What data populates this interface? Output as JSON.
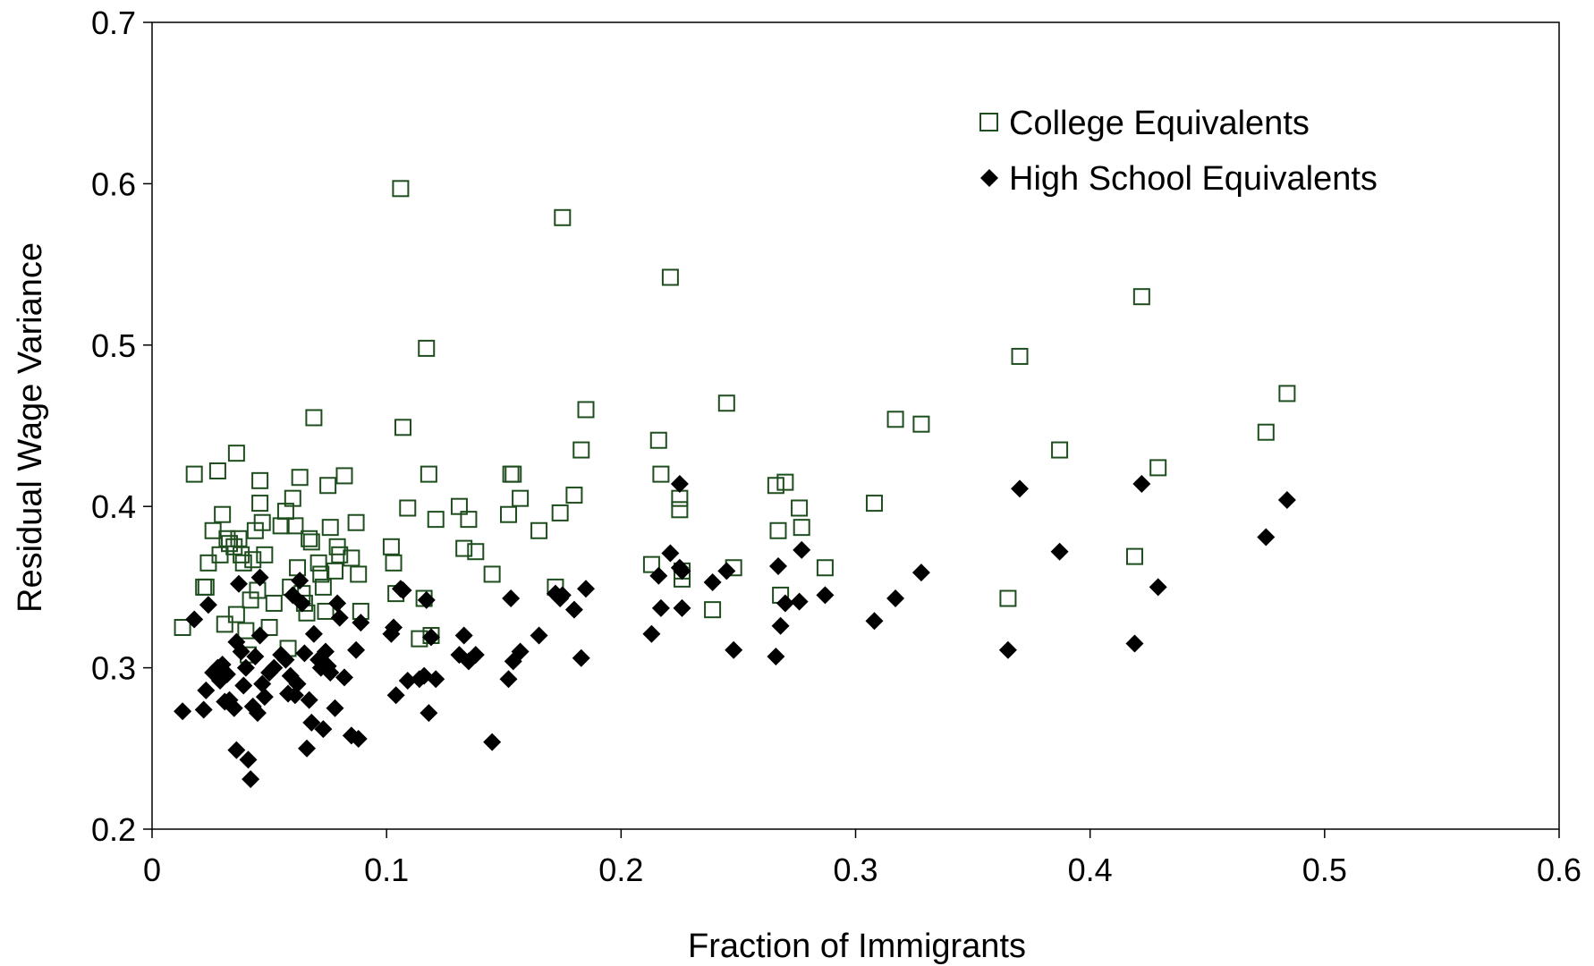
{
  "chart_data": {
    "type": "scatter",
    "title": "",
    "xlabel": "Fraction of Immigrants",
    "ylabel": "Residual Wage Variance",
    "xlim": [
      0,
      0.6
    ],
    "ylim": [
      0.2,
      0.7
    ],
    "x_ticks": [
      "0",
      "0.1",
      "0.2",
      "0.3",
      "0.4",
      "0.5",
      "0.6"
    ],
    "y_ticks": [
      "0.2",
      "0.3",
      "0.4",
      "0.5",
      "0.6",
      "0.7"
    ],
    "grid": false,
    "legend": "top-right",
    "series": [
      {
        "name": "College Equivalents",
        "marker": "hollow-square",
        "color": "#1e4d1e",
        "x": [
          0.013,
          0.018,
          0.022,
          0.023,
          0.024,
          0.026,
          0.028,
          0.029,
          0.03,
          0.031,
          0.032,
          0.033,
          0.035,
          0.036,
          0.036,
          0.037,
          0.038,
          0.039,
          0.04,
          0.041,
          0.042,
          0.043,
          0.044,
          0.045,
          0.046,
          0.046,
          0.047,
          0.048,
          0.05,
          0.052,
          0.055,
          0.057,
          0.058,
          0.059,
          0.06,
          0.061,
          0.062,
          0.063,
          0.064,
          0.065,
          0.066,
          0.067,
          0.068,
          0.069,
          0.071,
          0.072,
          0.073,
          0.074,
          0.075,
          0.076,
          0.078,
          0.079,
          0.08,
          0.082,
          0.085,
          0.087,
          0.088,
          0.089,
          0.102,
          0.103,
          0.104,
          0.106,
          0.107,
          0.109,
          0.114,
          0.116,
          0.117,
          0.118,
          0.119,
          0.121,
          0.131,
          0.133,
          0.135,
          0.138,
          0.145,
          0.152,
          0.153,
          0.154,
          0.157,
          0.165,
          0.172,
          0.174,
          0.175,
          0.18,
          0.183,
          0.185,
          0.213,
          0.216,
          0.217,
          0.221,
          0.225,
          0.225,
          0.226,
          0.226,
          0.239,
          0.245,
          0.248,
          0.266,
          0.267,
          0.268,
          0.27,
          0.276,
          0.277,
          0.287,
          0.308,
          0.317,
          0.328,
          0.365,
          0.37,
          0.387,
          0.419,
          0.422,
          0.429,
          0.475,
          0.484
        ],
        "y": [
          0.325,
          0.42,
          0.35,
          0.35,
          0.365,
          0.385,
          0.422,
          0.37,
          0.395,
          0.327,
          0.38,
          0.377,
          0.375,
          0.333,
          0.433,
          0.38,
          0.37,
          0.365,
          0.323,
          0.308,
          0.342,
          0.367,
          0.385,
          0.348,
          0.416,
          0.402,
          0.39,
          0.37,
          0.325,
          0.34,
          0.388,
          0.397,
          0.312,
          0.35,
          0.405,
          0.388,
          0.362,
          0.418,
          0.346,
          0.34,
          0.334,
          0.38,
          0.378,
          0.455,
          0.365,
          0.358,
          0.35,
          0.335,
          0.413,
          0.387,
          0.36,
          0.375,
          0.37,
          0.419,
          0.368,
          0.39,
          0.358,
          0.335,
          0.375,
          0.365,
          0.346,
          0.597,
          0.449,
          0.399,
          0.318,
          0.343,
          0.498,
          0.42,
          0.32,
          0.392,
          0.4,
          0.374,
          0.392,
          0.372,
          0.358,
          0.395,
          0.42,
          0.42,
          0.405,
          0.385,
          0.35,
          0.396,
          0.579,
          0.407,
          0.435,
          0.46,
          0.364,
          0.441,
          0.42,
          0.542,
          0.405,
          0.398,
          0.355,
          0.36,
          0.336,
          0.464,
          0.362,
          0.413,
          0.385,
          0.345,
          0.415,
          0.399,
          0.387,
          0.362,
          0.402,
          0.454,
          0.451,
          0.343,
          0.493,
          0.435,
          0.369,
          0.53,
          0.424,
          0.446,
          0.47
        ]
      },
      {
        "name": "High School Equivalents",
        "marker": "filled-diamond",
        "color": "#000000",
        "x": [
          0.013,
          0.018,
          0.022,
          0.023,
          0.024,
          0.026,
          0.028,
          0.029,
          0.03,
          0.031,
          0.032,
          0.033,
          0.035,
          0.036,
          0.036,
          0.037,
          0.038,
          0.039,
          0.04,
          0.041,
          0.042,
          0.043,
          0.044,
          0.045,
          0.046,
          0.046,
          0.047,
          0.048,
          0.05,
          0.052,
          0.055,
          0.057,
          0.058,
          0.059,
          0.06,
          0.061,
          0.062,
          0.063,
          0.064,
          0.065,
          0.066,
          0.067,
          0.068,
          0.069,
          0.071,
          0.072,
          0.073,
          0.074,
          0.075,
          0.076,
          0.078,
          0.079,
          0.08,
          0.082,
          0.085,
          0.087,
          0.088,
          0.089,
          0.102,
          0.103,
          0.104,
          0.106,
          0.107,
          0.109,
          0.114,
          0.116,
          0.117,
          0.118,
          0.119,
          0.121,
          0.131,
          0.133,
          0.135,
          0.138,
          0.145,
          0.152,
          0.153,
          0.154,
          0.157,
          0.165,
          0.172,
          0.174,
          0.175,
          0.18,
          0.183,
          0.185,
          0.213,
          0.216,
          0.217,
          0.221,
          0.225,
          0.225,
          0.226,
          0.226,
          0.239,
          0.245,
          0.248,
          0.266,
          0.267,
          0.268,
          0.27,
          0.276,
          0.277,
          0.287,
          0.308,
          0.317,
          0.328,
          0.365,
          0.37,
          0.387,
          0.419,
          0.422,
          0.429,
          0.475,
          0.484
        ],
        "y": [
          0.273,
          0.33,
          0.274,
          0.286,
          0.339,
          0.297,
          0.3,
          0.292,
          0.302,
          0.279,
          0.296,
          0.28,
          0.275,
          0.249,
          0.316,
          0.352,
          0.31,
          0.289,
          0.3,
          0.243,
          0.231,
          0.276,
          0.307,
          0.272,
          0.356,
          0.32,
          0.29,
          0.282,
          0.297,
          0.3,
          0.308,
          0.305,
          0.284,
          0.295,
          0.345,
          0.283,
          0.29,
          0.354,
          0.34,
          0.309,
          0.25,
          0.28,
          0.266,
          0.321,
          0.305,
          0.3,
          0.262,
          0.31,
          0.301,
          0.297,
          0.275,
          0.34,
          0.331,
          0.294,
          0.258,
          0.311,
          0.256,
          0.328,
          0.321,
          0.325,
          0.283,
          0.349,
          0.348,
          0.292,
          0.293,
          0.295,
          0.342,
          0.272,
          0.319,
          0.293,
          0.308,
          0.32,
          0.304,
          0.308,
          0.254,
          0.293,
          0.343,
          0.304,
          0.31,
          0.32,
          0.346,
          0.343,
          0.345,
          0.336,
          0.306,
          0.349,
          0.321,
          0.357,
          0.337,
          0.371,
          0.414,
          0.362,
          0.337,
          0.36,
          0.353,
          0.36,
          0.311,
          0.307,
          0.363,
          0.326,
          0.34,
          0.341,
          0.373,
          0.345,
          0.329,
          0.343,
          0.359,
          0.311,
          0.411,
          0.372,
          0.315,
          0.414,
          0.35,
          0.381,
          0.404
        ]
      }
    ]
  }
}
